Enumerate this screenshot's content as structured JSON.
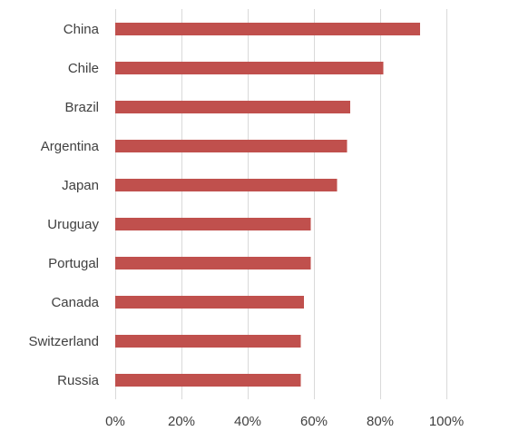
{
  "chart_data": {
    "type": "bar",
    "orientation": "horizontal",
    "categories": [
      "China",
      "Chile",
      "Brazil",
      "Argentina",
      "Japan",
      "Uruguay",
      "Portugal",
      "Canada",
      "Switzerland",
      "Russia"
    ],
    "values": [
      92,
      81,
      71,
      70,
      67,
      59,
      59,
      57,
      56,
      56
    ],
    "unit": "%",
    "xlim": [
      0,
      100
    ],
    "xticks": [
      "0%",
      "20%",
      "40%",
      "60%",
      "80%",
      "100%"
    ],
    "xtick_values": [
      0,
      20,
      40,
      60,
      80,
      100
    ],
    "title": "",
    "xlabel": "",
    "ylabel": "",
    "grid": "vertical",
    "legend": "none",
    "colors": {
      "bar": "#c0504d",
      "grid": "#d9d9d9",
      "text": "#404040"
    }
  }
}
